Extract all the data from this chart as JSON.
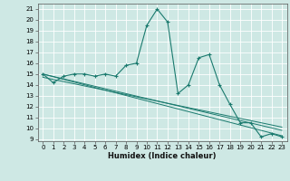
{
  "xlabel": "Humidex (Indice chaleur)",
  "background_color": "#cee8e4",
  "grid_color": "#ffffff",
  "line_color": "#1a7a6e",
  "xlim": [
    -0.5,
    23.5
  ],
  "ylim": [
    8.8,
    21.5
  ],
  "xticks": [
    0,
    1,
    2,
    3,
    4,
    5,
    6,
    7,
    8,
    9,
    10,
    11,
    12,
    13,
    14,
    15,
    16,
    17,
    18,
    19,
    20,
    21,
    22,
    23
  ],
  "yticks": [
    9,
    10,
    11,
    12,
    13,
    14,
    15,
    16,
    17,
    18,
    19,
    20,
    21
  ],
  "series": [
    [
      0,
      15.0
    ],
    [
      1,
      14.2
    ],
    [
      2,
      14.8
    ],
    [
      3,
      15.0
    ],
    [
      4,
      15.0
    ],
    [
      5,
      14.8
    ],
    [
      6,
      15.0
    ],
    [
      7,
      14.8
    ],
    [
      8,
      15.8
    ],
    [
      9,
      16.0
    ],
    [
      10,
      19.5
    ],
    [
      11,
      21.0
    ],
    [
      12,
      19.8
    ],
    [
      13,
      13.2
    ],
    [
      14,
      14.0
    ],
    [
      15,
      16.5
    ],
    [
      16,
      16.8
    ],
    [
      17,
      14.0
    ],
    [
      18,
      12.2
    ],
    [
      19,
      10.5
    ],
    [
      20,
      10.5
    ],
    [
      21,
      9.2
    ],
    [
      22,
      9.5
    ],
    [
      23,
      9.2
    ]
  ],
  "diag_lines": [
    [
      [
        0,
        15.0
      ],
      [
        23,
        9.3
      ]
    ],
    [
      [
        0,
        15.0
      ],
      [
        23,
        9.8
      ]
    ],
    [
      [
        0,
        14.7
      ],
      [
        23,
        10.1
      ]
    ]
  ],
  "xlabel_fontsize": 6,
  "tick_fontsize": 5
}
